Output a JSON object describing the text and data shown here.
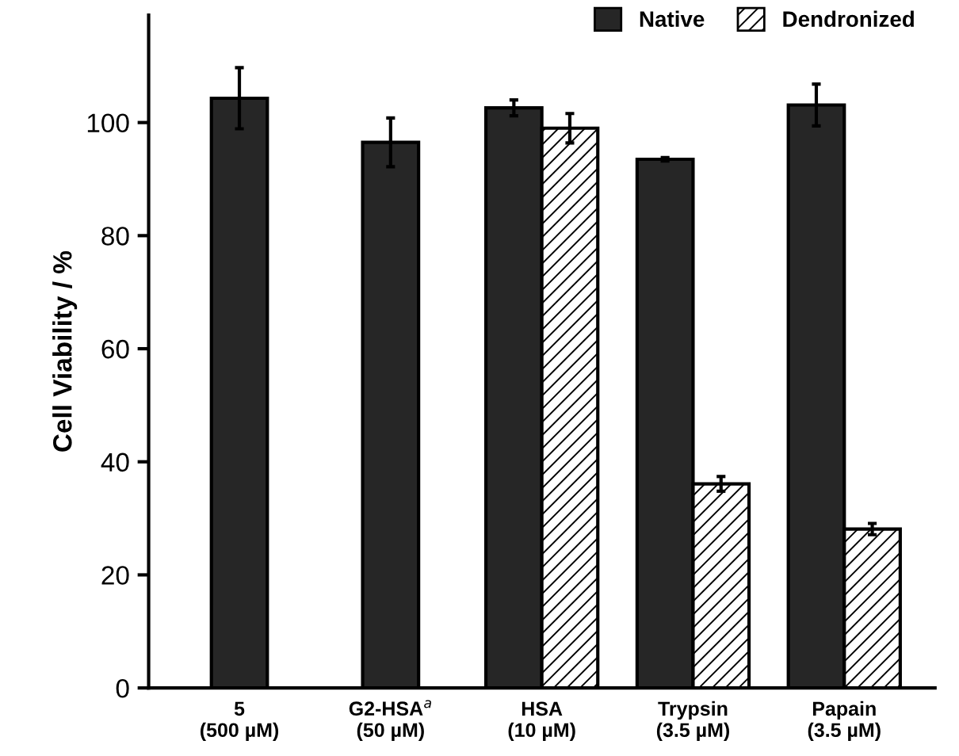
{
  "chart_data": {
    "type": "bar",
    "ylabel": "Cell Viability / %",
    "categories": [
      "5\n(500 µM)",
      "G2-HSA$^{a}$\n(50 µM)",
      "HSA\n(10 µM)",
      "Trypsin\n(3.5 µM)",
      "Papain\n(3.5 µM)"
    ],
    "series": [
      {
        "name": "Native",
        "color": "#262626",
        "values": [
          104.3,
          96.5,
          102.6,
          93.5,
          103.1
        ],
        "errors": [
          5.4,
          4.3,
          1.4,
          0.3,
          3.7
        ]
      },
      {
        "name": "Dendronized",
        "color": "#000000",
        "values": [
          null,
          null,
          99.0,
          36.1,
          28.1
        ],
        "errors": [
          null,
          null,
          2.6,
          1.3,
          1.0
        ]
      }
    ],
    "ylim": [
      0,
      119
    ],
    "yticks": [
      0,
      20,
      40,
      60,
      80,
      100
    ],
    "grid": false,
    "legend": "top right"
  }
}
